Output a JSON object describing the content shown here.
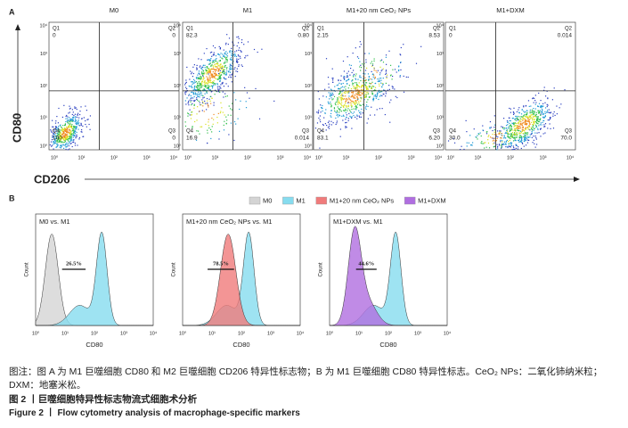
{
  "panel_a": {
    "label": "A",
    "y_axis": "CD80",
    "x_axis": "CD206",
    "ticks": [
      "10⁰",
      "10¹",
      "10²",
      "10³",
      "10⁴"
    ],
    "plots": [
      {
        "title": "M0",
        "quadrants": [
          {
            "name": "Q1",
            "value": "0"
          },
          {
            "name": "Q2",
            "value": "0"
          },
          {
            "name": "Q4",
            "value": "100"
          },
          {
            "name": "Q3",
            "value": "0"
          }
        ]
      },
      {
        "title": "M1",
        "quadrants": [
          {
            "name": "Q1",
            "value": "82.3"
          },
          {
            "name": "Q2",
            "value": "0.80"
          },
          {
            "name": "Q4",
            "value": "16.9"
          },
          {
            "name": "Q3",
            "value": "0.014"
          }
        ]
      },
      {
        "title": "M1+20 nm CeO₂ NPs",
        "quadrants": [
          {
            "name": "Q1",
            "value": "2.15"
          },
          {
            "name": "Q2",
            "value": "8.53"
          },
          {
            "name": "Q4",
            "value": "83.1"
          },
          {
            "name": "Q3",
            "value": "6.20"
          }
        ]
      },
      {
        "title": "M1+DXM",
        "quadrants": [
          {
            "name": "Q1",
            "value": "0"
          },
          {
            "name": "Q2",
            "value": "0.014"
          },
          {
            "name": "Q4",
            "value": "30.0"
          },
          {
            "name": "Q3",
            "value": "70.0"
          }
        ]
      }
    ]
  },
  "panel_b": {
    "label": "B",
    "legend": [
      {
        "name": "M0",
        "color": "#d4d4d4"
      },
      {
        "name": "M1",
        "color": "#86dcef"
      },
      {
        "name": "M1+20 nm CeO₂ NPs",
        "color": "#f07b7b"
      },
      {
        "name": "M1+DXM",
        "color": "#b06ee0"
      }
    ],
    "y_axis": "Count",
    "x_axis": "CD80",
    "ticks": [
      "10⁰",
      "10¹",
      "10²",
      "10³",
      "10⁴"
    ],
    "plots": [
      {
        "title": "M0 vs. M1",
        "percent": "26.5%"
      },
      {
        "title": "M1+20 nm CeO₂ NPs vs. M1",
        "percent": "78.5%"
      },
      {
        "title": "M1+DXM vs. M1",
        "percent": "44.6%"
      }
    ]
  },
  "caption": {
    "note": "图注：图 A 为 M1 巨噬细胞 CD80 和 M2 巨噬细胞 CD206 特异性标志物；B 为 M1 巨噬细胞 CD80 特异性标志。CeO₂ NPs：二氧化铈纳米粒；DXM：地塞米松。",
    "title_cn": "图 2 丨巨噬细胞特异性标志物流式细胞术分析",
    "title_en": "Figure 2 丨 Flow cytometry analysis of macrophage-specific markers"
  }
}
